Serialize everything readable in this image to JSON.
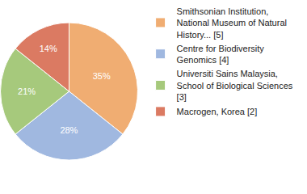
{
  "chart_data": {
    "type": "pie",
    "categories": [
      "Smithsonian Institution, National Museum of Natural History... [5]",
      "Centre for Biodiversity Genomics [4]",
      "Universiti Sains Malaysia, School of Biological Sciences [3]",
      "Macrogen, Korea [2]"
    ],
    "values": [
      35,
      28,
      21,
      14
    ],
    "value_labels": [
      "35%",
      "28%",
      "21%",
      "14%"
    ],
    "colors": [
      "#f0ad72",
      "#a0b8e0",
      "#a6c97c",
      "#db7a62"
    ],
    "data_labels": true,
    "legend": "right"
  }
}
